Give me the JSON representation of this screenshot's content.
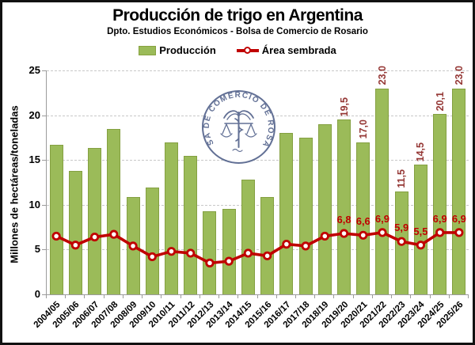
{
  "header": {
    "title": "Producción de trigo en Argentina",
    "subtitle": "Dpto. Estudios Económicos - Bolsa de Comercio de Rosario"
  },
  "legend": {
    "produccion_label": "Producción",
    "area_label": "Área sembrada"
  },
  "y_axis": {
    "title": "Millones de hectáreas/toneladas",
    "tick_labels": [
      "0",
      "5",
      "10",
      "15",
      "20",
      "25"
    ]
  },
  "watermark": {
    "seal_text": "BOLSA DE COMERCIO DE ROSARIO"
  },
  "colors": {
    "bar_fill": "#9BBB59",
    "bar_border": "#84A041",
    "line": "#C00000",
    "bar_label_text": "#953735",
    "line_label_text": "#C00000",
    "grid": "#C8C8C8",
    "axis": "#9B9B9B",
    "seal": "#4D5D87"
  },
  "chart_data": {
    "type": "bar",
    "title": "Producción de trigo en Argentina",
    "subtitle": "Dpto. Estudios Económicos - Bolsa de Comercio de Rosario",
    "ylabel": "Millones de hectáreas/toneladas",
    "xlabel": "",
    "ylim": [
      0,
      25
    ],
    "ytick_step": 5,
    "grid": "dashed-horizontal",
    "legend_position": "top",
    "decimal_separator": ",",
    "categories": [
      "2004/05",
      "2005/06",
      "2006/07",
      "2007/08",
      "2008/09",
      "2009/10",
      "2010/11",
      "2011/12",
      "2012/13",
      "2013/14",
      "2014/15",
      "2015/16",
      "2016/17",
      "2017/18",
      "2018/19",
      "2019/20",
      "2020/21",
      "2021/22",
      "2022/23",
      "2023/24",
      "2024/25",
      "2025/26"
    ],
    "series": [
      {
        "name": "Producción",
        "type": "bar",
        "values": [
          16.7,
          13.8,
          16.3,
          18.5,
          10.9,
          11.9,
          17.0,
          15.5,
          9.3,
          9.5,
          12.8,
          10.9,
          18.0,
          17.5,
          19.0,
          19.5,
          17.0,
          23.0,
          11.5,
          14.5,
          20.1,
          23.0
        ],
        "data_labels": [
          "",
          "",
          "",
          "",
          "",
          "",
          "",
          "",
          "",
          "",
          "",
          "",
          "",
          "",
          "",
          "19,5",
          "17,0",
          "23,0",
          "11,5",
          "14,5",
          "20,1",
          "23,0"
        ]
      },
      {
        "name": "Área sembrada",
        "type": "line",
        "values": [
          6.5,
          5.5,
          6.4,
          6.7,
          5.4,
          4.2,
          4.8,
          4.6,
          3.5,
          3.7,
          4.6,
          4.3,
          5.6,
          5.4,
          6.5,
          6.8,
          6.6,
          6.9,
          5.9,
          5.5,
          6.9,
          6.9
        ],
        "data_labels": [
          "",
          "",
          "",
          "",
          "",
          "",
          "",
          "",
          "",
          "",
          "",
          "",
          "",
          "",
          "",
          "6,8",
          "6,6",
          "6,9",
          "5,9",
          "5,5",
          "6,9",
          "6,9"
        ]
      }
    ]
  }
}
